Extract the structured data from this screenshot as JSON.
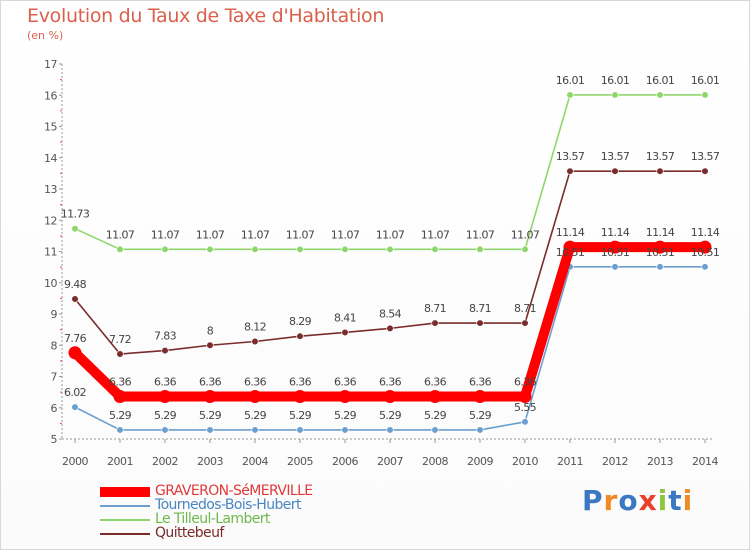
{
  "header": {
    "title": "Evolution du Taux de Taxe d'Habitation",
    "unit": "(en %)"
  },
  "chart_data": {
    "type": "line",
    "title": "Evolution du Taux de Taxe d'Habitation",
    "ylabel": "(en %)",
    "xlabel": "",
    "x": [
      "2000",
      "2001",
      "2002",
      "2003",
      "2004",
      "2005",
      "2006",
      "2007",
      "2008",
      "2009",
      "2010",
      "2011",
      "2012",
      "2013",
      "2014"
    ],
    "ylim": [
      5,
      17
    ],
    "yticks": [
      5,
      6,
      7,
      8,
      9,
      10,
      11,
      12,
      13,
      14,
      15,
      16,
      17
    ],
    "grid": false,
    "legend_position": "bottom-left",
    "series": [
      {
        "name": "GRAVERON-SéMERVILLE",
        "color": "#ff0000",
        "values": [
          7.76,
          6.36,
          6.36,
          6.36,
          6.36,
          6.36,
          6.36,
          6.36,
          6.36,
          6.36,
          6.36,
          11.14,
          11.14,
          11.14,
          11.14
        ],
        "labels": [
          "7.76",
          "6.36",
          "6.36",
          "6.36",
          "6.36",
          "6.36",
          "6.36",
          "6.36",
          "6.36",
          "6.36",
          "6.36",
          "11.14",
          "11.14",
          "11.14",
          "11.14"
        ]
      },
      {
        "name": "Tournedos-Bois-Hubert",
        "color": "#6b9fcf",
        "values": [
          6.02,
          5.29,
          5.29,
          5.29,
          5.29,
          5.29,
          5.29,
          5.29,
          5.29,
          5.29,
          5.55,
          10.51,
          10.51,
          10.51,
          10.51
        ],
        "labels": [
          "6.02",
          "5.29",
          "5.29",
          "5.29",
          "5.29",
          "5.29",
          "5.29",
          "5.29",
          "5.29",
          "5.29",
          "5.55",
          "10.51",
          "10.51",
          "10.51",
          "10.51"
        ]
      },
      {
        "name": "Le Tilleul-Lambert",
        "color": "#8fd66a",
        "values": [
          11.73,
          11.07,
          11.07,
          11.07,
          11.07,
          11.07,
          11.07,
          11.07,
          11.07,
          11.07,
          11.07,
          16.01,
          16.01,
          16.01,
          16.01
        ],
        "labels": [
          "11.73",
          "11.07",
          "11.07",
          "11.07",
          "11.07",
          "11.07",
          "11.07",
          "11.07",
          "11.07",
          "11.07",
          "11.07",
          "16.01",
          "16.01",
          "16.01",
          "16.01"
        ]
      },
      {
        "name": "Quittebeuf",
        "color": "#7a2b2b",
        "values": [
          9.48,
          7.72,
          7.83,
          8,
          8.12,
          8.29,
          8.41,
          8.54,
          8.71,
          8.71,
          8.71,
          13.57,
          13.57,
          13.57,
          13.57
        ],
        "labels": [
          "9.48",
          "7.72",
          "7.83",
          "8",
          "8.12",
          "8.29",
          "8.41",
          "8.54",
          "8.71",
          "8.71",
          "8.71",
          "13.57",
          "13.57",
          "13.57",
          "13.57"
        ]
      }
    ]
  },
  "branding": {
    "logo_text": "Proxiti",
    "letter_colors": [
      "#3a78c3",
      "#f08a24",
      "#3a78c3",
      "#e8402c",
      "#8dc63f",
      "#3a78c3",
      "#f08a24"
    ]
  }
}
